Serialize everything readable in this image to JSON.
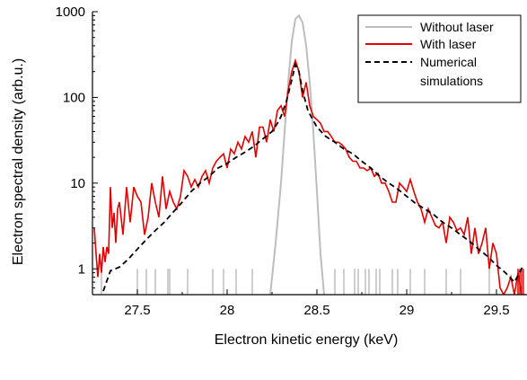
{
  "chart_data": {
    "type": "line",
    "xlabel": "Electron kinetic energy (keV)",
    "ylabel": "Electron spectral density (arb.u.)",
    "xlim": [
      27.25,
      29.67
    ],
    "ylim": [
      0.5,
      1000
    ],
    "y_scale": "log",
    "grid": false,
    "legend_position": "top-right",
    "x_ticks": [
      27.5,
      28,
      28.5,
      29,
      29.5
    ],
    "x_tick_labels": [
      "27.5",
      "28",
      "28.5",
      "29",
      "29.5"
    ],
    "y_ticks": [
      1,
      10,
      100,
      1000
    ],
    "y_tick_labels": [
      "1",
      "10",
      "100",
      "1000"
    ],
    "series": [
      {
        "name": "Without laser",
        "color": "#bdbdbd",
        "style": "solid",
        "x": [
          28.24,
          28.27,
          28.3,
          28.32,
          28.34,
          28.36,
          28.38,
          28.4,
          28.42,
          28.44,
          28.46,
          28.48,
          28.5,
          28.52,
          28.54
        ],
        "y": [
          0.5,
          2,
          10,
          40,
          150,
          450,
          820,
          900,
          750,
          400,
          150,
          40,
          8,
          1.5,
          0.5
        ],
        "spikes": [
          27.3,
          27.5,
          27.55,
          27.6,
          27.67,
          27.68,
          27.78,
          27.92,
          27.98,
          28.05,
          28.14,
          28.6,
          28.65,
          28.71,
          28.73,
          28.77,
          28.79,
          28.83,
          28.85,
          28.92,
          28.95,
          29.02,
          29.1,
          29.22,
          29.3,
          29.46,
          29.62
        ]
      },
      {
        "name": "With laser",
        "color": "#e00000",
        "style": "solid",
        "x": [
          27.26,
          27.27,
          27.28,
          27.29,
          27.3,
          27.31,
          27.32,
          27.33,
          27.34,
          27.35,
          27.36,
          27.37,
          27.38,
          27.39,
          27.4,
          27.42,
          27.44,
          27.46,
          27.48,
          27.5,
          27.52,
          27.54,
          27.56,
          27.58,
          27.6,
          27.62,
          27.64,
          27.66,
          27.68,
          27.7,
          27.72,
          27.74,
          27.76,
          27.78,
          27.8,
          27.82,
          27.84,
          27.86,
          27.88,
          27.9,
          27.92,
          27.94,
          27.96,
          27.98,
          28.0,
          28.02,
          28.04,
          28.06,
          28.08,
          28.1,
          28.12,
          28.14,
          28.16,
          28.18,
          28.2,
          28.22,
          28.24,
          28.26,
          28.28,
          28.3,
          28.32,
          28.34,
          28.36,
          28.38,
          28.4,
          28.42,
          28.44,
          28.46,
          28.48,
          28.5,
          28.52,
          28.54,
          28.56,
          28.58,
          28.6,
          28.62,
          28.64,
          28.66,
          28.68,
          28.7,
          28.72,
          28.74,
          28.76,
          28.78,
          28.8,
          28.82,
          28.84,
          28.86,
          28.88,
          28.9,
          28.92,
          28.94,
          28.96,
          28.98,
          29.0,
          29.02,
          29.04,
          29.06,
          29.08,
          29.1,
          29.12,
          29.14,
          29.16,
          29.18,
          29.2,
          29.22,
          29.24,
          29.26,
          29.28,
          29.3,
          29.32,
          29.34,
          29.36,
          29.38,
          29.4,
          29.42,
          29.44,
          29.46,
          29.48,
          29.5,
          29.52,
          29.54,
          29.56,
          29.58,
          29.6,
          29.62,
          29.64,
          29.66
        ],
        "y": [
          3,
          1.5,
          0.8,
          1.5,
          0.9,
          1.8,
          1.2,
          1.8,
          1.5,
          9,
          3,
          4.5,
          2,
          5,
          6,
          2.5,
          9,
          3.5,
          9,
          7,
          6,
          2.5,
          4,
          10,
          6,
          4,
          12,
          5,
          8,
          6,
          5,
          7,
          14,
          12,
          9,
          11,
          9,
          12,
          14,
          10,
          15,
          18,
          20,
          22,
          15,
          25,
          22,
          30,
          25,
          35,
          30,
          40,
          20,
          45,
          45,
          30,
          55,
          40,
          70,
          80,
          60,
          120,
          200,
          270,
          200,
          100,
          150,
          80,
          60,
          55,
          50,
          40,
          40,
          35,
          30,
          30,
          28,
          25,
          20,
          18,
          18,
          15,
          15,
          14,
          15,
          12,
          13,
          10,
          10,
          8,
          6,
          6,
          10,
          9,
          8,
          11,
          8,
          6,
          5,
          3.5,
          5,
          4,
          3.2,
          3,
          3.5,
          2,
          4,
          3.5,
          2.8,
          3,
          2.5,
          4,
          1.5,
          3,
          1.5,
          2,
          3,
          1,
          2,
          1.5,
          0.6,
          0.5,
          0.6,
          0.8,
          0.5,
          0.9,
          0.5,
          0.5
        ],
        "dips": [
          29.62,
          29.63,
          29.64,
          29.65
        ]
      },
      {
        "name": "Numerical simulations",
        "color": "#000000",
        "style": "dashed",
        "x": [
          27.31,
          27.35,
          27.4,
          27.45,
          27.5,
          27.55,
          27.6,
          27.65,
          27.7,
          27.75,
          27.8,
          27.85,
          27.9,
          27.95,
          28.0,
          28.05,
          28.1,
          28.15,
          28.2,
          28.25,
          28.28,
          28.3,
          28.33,
          28.36,
          28.38,
          28.4,
          28.42,
          28.45,
          28.5,
          28.55,
          28.6,
          28.65,
          28.7,
          28.75,
          28.8,
          28.85,
          28.9,
          28.95,
          29.0,
          29.05,
          29.1,
          29.15,
          29.2,
          29.25,
          29.3,
          29.35,
          29.4,
          29.45,
          29.5,
          29.55,
          29.6,
          29.65
        ],
        "y": [
          0.55,
          0.95,
          1.05,
          1.3,
          1.7,
          2.2,
          2.8,
          3.5,
          4.6,
          6,
          8,
          10,
          12,
          15,
          17,
          20,
          23,
          27,
          33,
          40,
          50,
          60,
          90,
          160,
          240,
          200,
          120,
          70,
          45,
          35,
          30,
          25,
          22,
          18,
          15,
          12,
          10,
          8.5,
          7,
          5.8,
          5,
          4.3,
          3.5,
          3,
          2.5,
          2.1,
          1.7,
          1.4,
          1.1,
          0.9,
          0.7,
          1.1
        ]
      }
    ],
    "legend": {
      "items": [
        "Without laser",
        "With laser",
        "Numerical",
        "simulations"
      ]
    }
  }
}
